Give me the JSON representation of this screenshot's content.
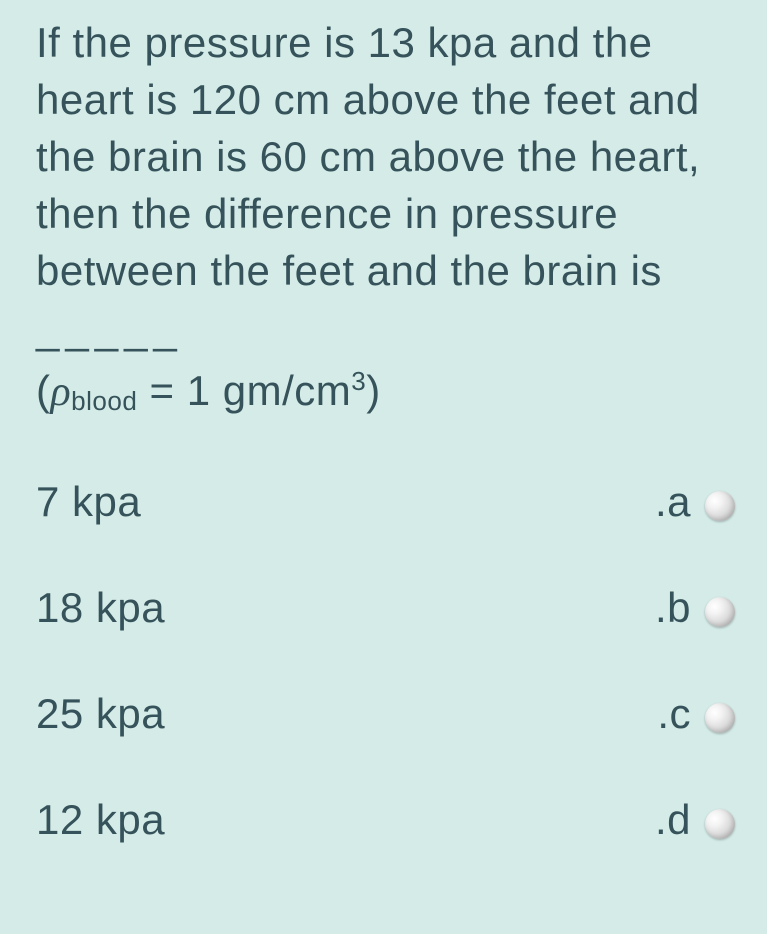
{
  "question": {
    "line1": "If the pressure is 13 kpa and the",
    "line2": "heart is 120 cm above the feet and",
    "line3": "the brain is 60 cm above the heart,",
    "line4": "then the difference in pressure",
    "line5": "between the feet and the brain is",
    "dashes": "_____",
    "formula_open": "(",
    "formula_rho": "ρ",
    "formula_sub": "blood",
    "formula_mid": " = 1 gm/cm",
    "formula_sup": "3",
    "formula_close": ")"
  },
  "options": [
    {
      "text": "7 kpa",
      "letter": ".a"
    },
    {
      "text": "18 kpa",
      "letter": ".b"
    },
    {
      "text": "25 kpa",
      "letter": ".c"
    },
    {
      "text": "12 kpa",
      "letter": ".d"
    }
  ],
  "style": {
    "background_color": "#d4ebe7",
    "text_color": "#36525a",
    "font_size_main": 42,
    "radio_diameter": 30,
    "radio_colors": [
      "#ffffff",
      "#d8d8d8",
      "#bfbfbf"
    ]
  }
}
